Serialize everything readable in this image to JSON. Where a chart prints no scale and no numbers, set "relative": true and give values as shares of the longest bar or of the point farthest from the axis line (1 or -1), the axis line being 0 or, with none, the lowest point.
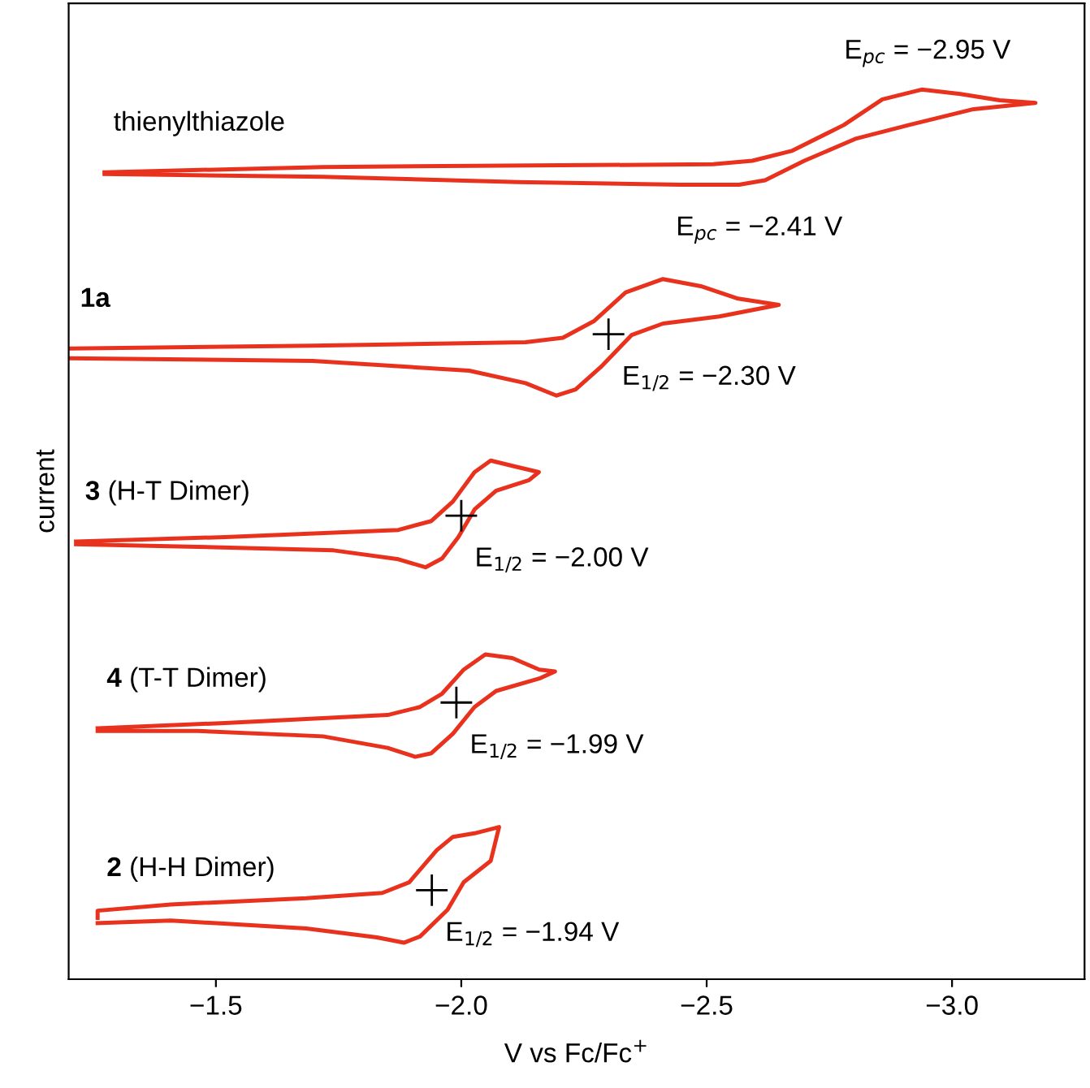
{
  "chart_data": {
    "type": "line",
    "relative": true,
    "xlabel": "V vs Fc/Fc$^{+}$",
    "ylabel": "current",
    "xlim": [
      -1.2,
      -3.27
    ],
    "xticks": [
      {
        "value": -1.5,
        "label": "−1.5"
      },
      {
        "value": -2.0,
        "label": "−2.0"
      },
      {
        "value": -2.5,
        "label": "−2.5"
      },
      {
        "value": -3.0,
        "label": "−3.0"
      }
    ],
    "tick_labels": "x",
    "series": [
      {
        "name": "thienylthiazole",
        "color": "#e8321e",
        "x": [
          -1.273,
          -1.718,
          -2.513,
          -2.593,
          -2.673,
          -2.779,
          -2.858,
          -2.938,
          -3.017,
          -3.097,
          -3.17,
          -3.044,
          -2.911,
          -2.805,
          -2.699,
          -2.619,
          -2.566,
          -2.447,
          -2.115,
          -1.718,
          -1.273
        ],
        "values": [
          0.907,
          0.913,
          0.916,
          0.92,
          0.931,
          0.96,
          0.989,
          1.0,
          0.995,
          0.988,
          0.985,
          0.978,
          0.96,
          0.945,
          0.92,
          0.898,
          0.893,
          0.893,
          0.896,
          0.902,
          0.905
        ]
      },
      {
        "name": "1a",
        "color": "#e8321e",
        "x": [
          -1.205,
          -1.697,
          -2.131,
          -2.207,
          -2.271,
          -2.335,
          -2.411,
          -2.488,
          -2.564,
          -2.647,
          -2.526,
          -2.411,
          -2.347,
          -2.284,
          -2.233,
          -2.194,
          -2.131,
          -2.016,
          -1.697,
          -1.205
        ],
        "values": [
          0.709,
          0.712,
          0.716,
          0.721,
          0.74,
          0.772,
          0.787,
          0.779,
          0.765,
          0.758,
          0.745,
          0.737,
          0.724,
          0.688,
          0.663,
          0.656,
          0.67,
          0.684,
          0.695,
          0.698
        ]
      },
      {
        "name": "3 (H-T Dimer)",
        "color": "#e8321e",
        "x": [
          -1.215,
          -1.519,
          -1.872,
          -1.939,
          -1.983,
          -2.027,
          -2.06,
          -2.104,
          -2.158,
          -2.138,
          -2.071,
          -2.027,
          -1.994,
          -1.961,
          -1.927,
          -1.872,
          -1.74,
          -1.463,
          -1.215
        ],
        "values": [
          0.492,
          0.497,
          0.505,
          0.515,
          0.537,
          0.57,
          0.583,
          0.577,
          0.57,
          0.561,
          0.549,
          0.528,
          0.497,
          0.473,
          0.463,
          0.472,
          0.482,
          0.486,
          0.489
        ]
      },
      {
        "name": "4 (T-T Dimer)",
        "color": "#e8321e",
        "x": [
          -1.259,
          -1.519,
          -1.85,
          -1.916,
          -1.961,
          -2.005,
          -2.049,
          -2.104,
          -2.159,
          -2.191,
          -2.159,
          -2.071,
          -2.027,
          -1.983,
          -1.939,
          -1.906,
          -1.85,
          -1.718,
          -1.463,
          -1.259
        ],
        "values": [
          0.282,
          0.288,
          0.297,
          0.306,
          0.321,
          0.348,
          0.365,
          0.361,
          0.348,
          0.346,
          0.338,
          0.324,
          0.306,
          0.276,
          0.254,
          0.25,
          0.26,
          0.273,
          0.279,
          0.279
        ]
      },
      {
        "name": "2 (H-H Dimer)",
        "color": "#e8321e",
        "x": [
          -1.259,
          -1.259,
          -1.408,
          -1.684,
          -1.839,
          -1.894,
          -1.95,
          -1.983,
          -2.027,
          -2.077,
          -2.06,
          -2.005,
          -1.972,
          -1.916,
          -1.883,
          -1.828,
          -1.684,
          -1.408,
          -1.259
        ],
        "values": [
          0.069,
          0.077,
          0.084,
          0.091,
          0.097,
          0.109,
          0.145,
          0.16,
          0.164,
          0.171,
          0.133,
          0.109,
          0.078,
          0.048,
          0.041,
          0.047,
          0.057,
          0.066,
          0.063
        ]
      },
      {
        "type": "scatter",
        "marker": "cross",
        "color": "#000000",
        "x": [
          -2.3,
          -2.0,
          -1.99,
          -1.94
        ],
        "values": [
          0.725,
          0.521,
          0.311,
          0.1
        ]
      }
    ],
    "annotations": [
      {
        "text": "E$_{pc}$ = −2.95 V",
        "x": -2.95,
        "y": 1.0
      },
      {
        "text": "E$_{pc}$ = −2.41 V",
        "x": -2.41,
        "y": 0.893
      },
      {
        "text": "E$_{1/2}$ = −2.30 V",
        "x": -2.3,
        "y": 0.725
      },
      {
        "text": "E$_{1/2}$ = −2.00 V",
        "x": -2.0,
        "y": 0.521
      },
      {
        "text": "E$_{1/2}$ = −1.99 V",
        "x": -1.99,
        "y": 0.311
      },
      {
        "text": "E$_{1/2}$ = −1.94 V",
        "x": -1.94,
        "y": 0.1
      }
    ]
  }
}
